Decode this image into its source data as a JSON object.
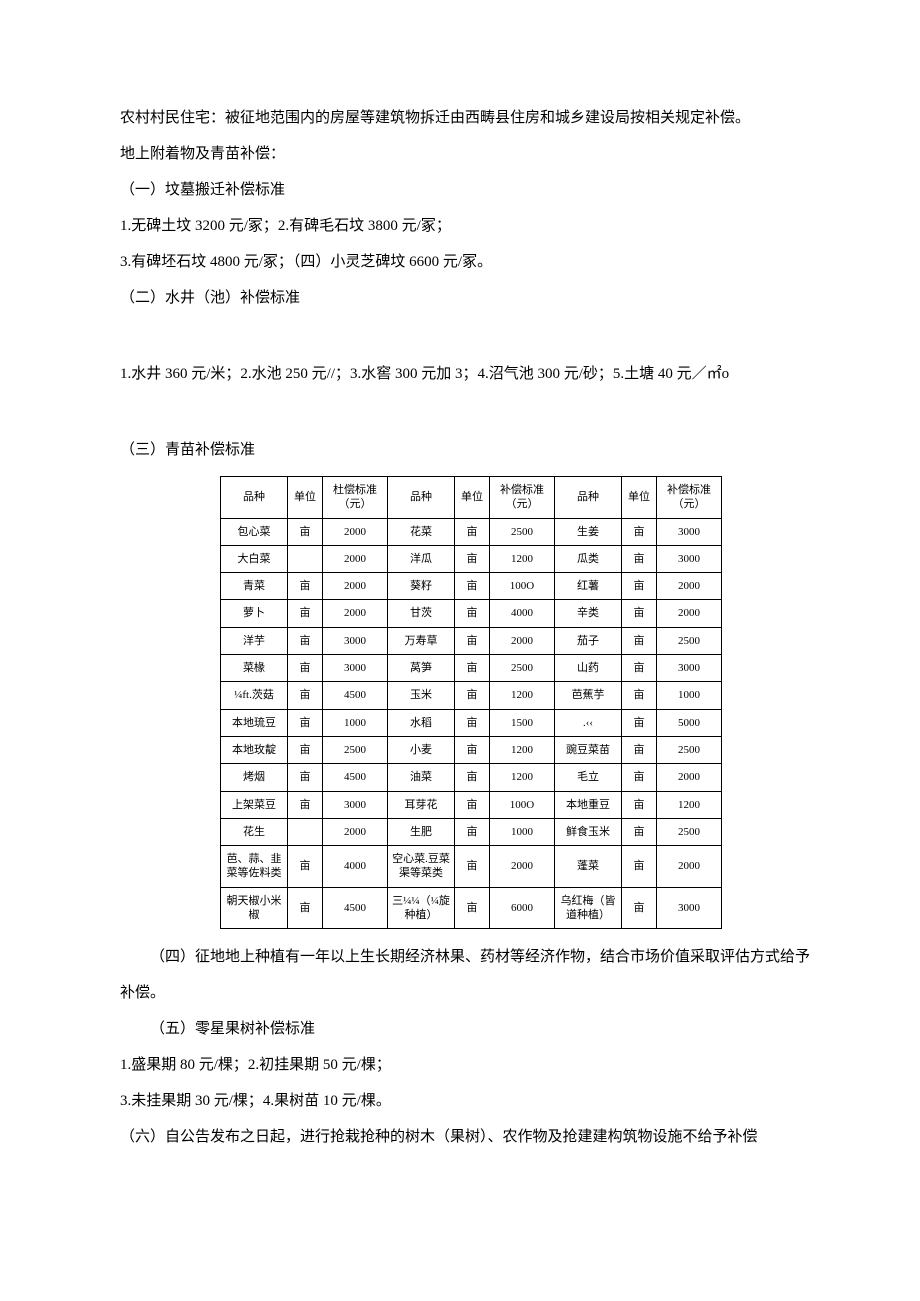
{
  "p1": "农村村民住宅：被征地范围内的房屋等建筑物拆迁由西畴县住房和城乡建设局按相关规定补偿。",
  "p2": "地上附着物及青苗补偿：",
  "s1_title": "（一）坟墓搬迁补偿标准",
  "s1_l1": "1.无碑土坟 3200 元/冢；2.有碑毛石坟 3800 元/冢；",
  "s1_l2": "3.有碑坯石坟 4800 元/冢；（四）小灵芝碑坟 6600 元/冢。",
  "s2_title": "（二）水井（池）补偿标准",
  "s2_l1": "1.水井 360 元/米；2.水池 250 元//；3.水窖 300 元加 3；4.沼气池 300 元/砂；5.土塘 40 元／㎡o",
  "s3_title": "（三）青苗补偿标准",
  "table": {
    "head": [
      "品种",
      "单位",
      "杜偿标准（元）",
      "品种",
      "单位",
      "补偿标准（元）",
      "品种",
      "单位",
      "补偿标准（元）"
    ],
    "rows": [
      [
        "包心菜",
        "亩",
        "2000",
        "花菜",
        "亩",
        "2500",
        "生姜",
        "亩",
        "3000"
      ],
      [
        "大白菜",
        "",
        "2000",
        "洋瓜",
        "亩",
        "1200",
        "瓜类",
        "亩",
        "3000"
      ],
      [
        "青菜",
        "亩",
        "2000",
        "葵籽",
        "亩",
        "100O",
        "红薯",
        "亩",
        "2000"
      ],
      [
        "萝卜",
        "亩",
        "2000",
        "甘茨",
        "亩",
        "4000",
        "辛类",
        "亩",
        "2000"
      ],
      [
        "洋芋",
        "亩",
        "3000",
        "万寿草",
        "亩",
        "2000",
        "茄子",
        "亩",
        "2500"
      ],
      [
        "菜椽",
        "亩",
        "3000",
        "莴笋",
        "亩",
        "2500",
        "山药",
        "亩",
        "3000"
      ],
      [
        "¼ft.茨菇",
        "亩",
        "4500",
        "玉米",
        "亩",
        "1200",
        "芭蕉芋",
        "亩",
        "1000"
      ],
      [
        "本地琉豆",
        "亩",
        "1000",
        "水稻",
        "亩",
        "1500",
        ".‹‹",
        "亩",
        "5000"
      ],
      [
        "本地玫靛",
        "亩",
        "2500",
        "小麦",
        "亩",
        "1200",
        "豌豆菜苗",
        "亩",
        "2500"
      ],
      [
        "烤烟",
        "亩",
        "4500",
        "油菜",
        "亩",
        "1200",
        "毛立",
        "亩",
        "2000"
      ],
      [
        "上架菜豆",
        "亩",
        "3000",
        "耳芽花",
        "亩",
        "100O",
        "本地重豆",
        "亩",
        "1200"
      ],
      [
        "花生",
        "",
        "2000",
        "生肥",
        "亩",
        "1000",
        "鲜食玉米",
        "亩",
        "2500"
      ],
      [
        "芭、蒜、韭菜等佐料类",
        "亩",
        "4000",
        "空心菜.豆菜渠等菜类",
        "亩",
        "2000",
        "蓬菜",
        "亩",
        "2000"
      ],
      [
        "朝天椒小米椒",
        "亩",
        "4500",
        "三¼¼（¼旋种植）",
        "亩",
        "6000",
        "乌红梅（皆道种植）",
        "亩",
        "3000"
      ]
    ]
  },
  "s4": "（四）征地地上种植有一年以上生长期经济林果、药材等经济作物，结合市场价值采取评估方式给予补偿。",
  "s5_title": "（五）零星果树补偿标准",
  "s5_l1": "1.盛果期 80 元/棵；2.初挂果期 50 元/棵；",
  "s5_l2": "3.未挂果期 30 元/棵；4.果树苗 10 元/棵。",
  "s6": "（六）自公告发布之日起，进行抢栽抢种的树木（果树）、农作物及抢建建构筑物设施不给予补偿"
}
